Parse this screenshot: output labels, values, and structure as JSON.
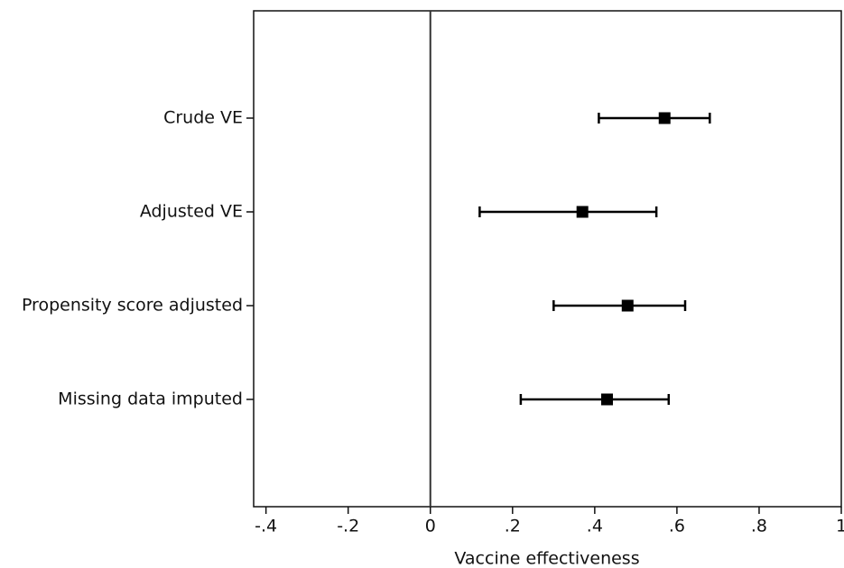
{
  "chart_data": {
    "type": "forest",
    "categories": [
      "Crude VE",
      "Adjusted VE",
      "Propensity score adjusted",
      "Missing data imputed"
    ],
    "values": [
      0.57,
      0.37,
      0.48,
      0.43
    ],
    "lower": [
      0.41,
      0.12,
      0.3,
      0.22
    ],
    "upper": [
      0.68,
      0.55,
      0.62,
      0.58
    ],
    "color": "#000000",
    "xlabel": "Vaccine effectiveness",
    "xlim": [
      -0.43,
      1
    ],
    "xticks": [
      {
        "value": -0.4,
        "label": "-.4"
      },
      {
        "value": -0.2,
        "label": "-.2"
      },
      0,
      {
        "value": 0.2,
        "label": ".2"
      },
      {
        "value": 0.4,
        "label": ".4"
      },
      {
        "value": 0.6,
        "label": ".6"
      },
      {
        "value": 0.8,
        "label": ".8"
      },
      1
    ],
    "xline": 0
  }
}
